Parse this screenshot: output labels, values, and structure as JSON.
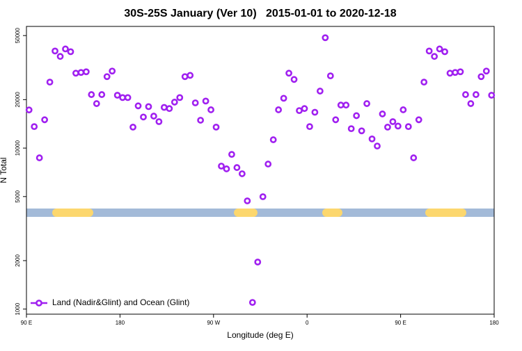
{
  "chart_data": {
    "type": "scatter",
    "title": "30S-25S January (Ver 10)   2015-01-01 to 2020-12-18",
    "x_label": "Longitude (deg E)",
    "y_label": "N Total",
    "xlim": [
      90,
      540
    ],
    "xticks": [
      {
        "value": 90,
        "label": "90 E"
      },
      180,
      {
        "value": 270,
        "label": "90 W"
      },
      {
        "value": 360,
        "label": "0"
      },
      {
        "value": 450,
        "label": "90 E"
      },
      {
        "value": 540,
        "label": "180"
      }
    ],
    "ylim": [
      930,
      57000
    ],
    "ylog": true,
    "yticks": [
      1000,
      2000,
      5000,
      10000,
      20000,
      50000
    ],
    "legend": "bottom-left",
    "x": [
      92.5,
      97.5,
      102.5,
      107.5,
      112.5,
      117.5,
      122.5,
      127.5,
      132.5,
      137.5,
      142.5,
      147.5,
      152.5,
      157.5,
      162.5,
      167.5,
      172.5,
      177.5,
      182.5,
      187.5,
      192.5,
      197.5,
      202.5,
      207.5,
      212.5,
      217.5,
      222.5,
      227.5,
      232.5,
      237.5,
      242.5,
      247.5,
      252.5,
      257.5,
      262.5,
      267.5,
      272.5,
      277.5,
      282.5,
      287.5,
      292.5,
      297.5,
      302.5,
      307.5,
      312.5,
      317.5,
      322.5,
      327.5,
      332.5,
      337.5,
      342.5,
      347.5,
      352.5,
      357.5,
      362.5,
      367.5,
      372.5,
      377.5,
      382.5,
      387.5,
      392.5,
      397.5,
      402.5,
      407.5,
      412.5,
      417.5,
      422.5,
      427.5,
      432.5,
      437.5,
      442.5,
      447.5,
      452.5,
      457.5,
      462.5,
      467.5,
      472.5,
      477.5,
      482.5,
      487.5,
      492.5,
      497.5,
      502.5,
      507.5,
      512.5,
      517.5,
      522.5,
      527.5,
      532.5,
      537.5
    ],
    "series": [
      {
        "name": "Land (Nadir&Glint) and Ocean (Glint)",
        "color": "#a020f0",
        "values": [
          17260,
          13600,
          8700,
          15000,
          25700,
          40100,
          37100,
          41300,
          39700,
          29200,
          29500,
          29800,
          21500,
          18900,
          21500,
          27800,
          30100,
          21300,
          20600,
          20600,
          13500,
          18300,
          15600,
          18100,
          15800,
          14600,
          17900,
          17600,
          19300,
          20600,
          27800,
          28300,
          19100,
          14900,
          19600,
          17300,
          13500,
          7730,
          7430,
          9140,
          7570,
          6930,
          4700,
          1100,
          1960,
          4990,
          7960,
          11270,
          17300,
          20400,
          29200,
          26700,
          17100,
          17600,
          13600,
          16700,
          22600,
          48500,
          28100,
          15000,
          18500,
          18500,
          13200,
          15900,
          12800,
          18900,
          11400,
          10300,
          16300,
          13500,
          14600,
          13700,
          17300,
          13600,
          8700,
          15000,
          25700,
          40100,
          37100,
          41300,
          39700,
          29200,
          29500,
          29800,
          21500,
          18900,
          21500,
          27800,
          30100,
          21300
        ]
      }
    ],
    "surface_band": {
      "y": 3970,
      "ocean_color": "#a3bad8",
      "land_color": "#fcd76e",
      "land": [
        [
          114.8,
          154.3
        ],
        [
          289.6,
          312.3
        ],
        [
          374.6,
          394
        ],
        [
          473.7,
          513.2
        ]
      ]
    }
  }
}
